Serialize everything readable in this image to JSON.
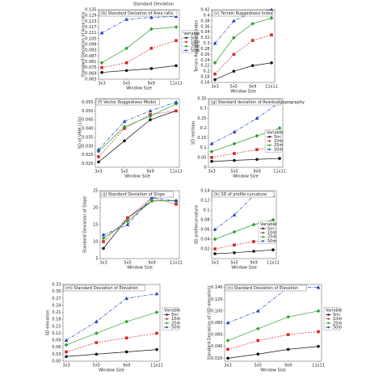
{
  "figure_title": "Standard Deviation",
  "chart_data": [
    {
      "type": "line",
      "title": "(b) Standard Deviation of Area ratio",
      "ylabel": "Standard Deviation of Area ratio",
      "xlabel": "Window Size",
      "legend_title": "Variable",
      "categories": [
        "3x3",
        "5x5",
        "9x9",
        "11x11"
      ],
      "ylim": [
        0.063,
        0.135
      ],
      "yticks": [
        0.063,
        0.069,
        0.075,
        0.081,
        0.087,
        0.093,
        0.099,
        0.105,
        0.111,
        0.117,
        0.123,
        0.129,
        0.135
      ],
      "series": [
        {
          "name": "5m",
          "color": "#111111",
          "values": [
            0.07,
            0.072,
            0.074,
            0.077
          ]
        },
        {
          "name": "10m",
          "color": "#d62728",
          "values": [
            0.075,
            0.08,
            0.095,
            0.103
          ]
        },
        {
          "name": "25m",
          "color": "#2ca02c",
          "values": [
            0.08,
            0.095,
            0.115,
            0.117
          ]
        },
        {
          "name": "50m",
          "color": "#1f3fbf",
          "values": [
            0.111,
            0.125,
            0.127,
            0.128
          ]
        }
      ]
    },
    {
      "type": "line",
      "title": "(c) Terrain Ruggedness Index",
      "ylabel": "Terrain Ruggedness Index",
      "xlabel": "Window Size",
      "categories": [
        "3x3",
        "5x5",
        "9x9",
        "11x11"
      ],
      "ylim": [
        0.16,
        0.42
      ],
      "yticks": [
        0.16,
        0.18,
        0.2,
        0.22,
        0.24,
        0.26,
        0.28,
        0.3,
        0.32,
        0.34,
        0.36,
        0.38,
        0.4,
        0.42
      ],
      "series": [
        {
          "name": "5m",
          "color": "#111111",
          "values": [
            0.17,
            0.2,
            0.22,
            0.23
          ]
        },
        {
          "name": "10m",
          "color": "#d62728",
          "values": [
            0.19,
            0.26,
            0.31,
            0.33
          ]
        },
        {
          "name": "25m",
          "color": "#2ca02c",
          "values": [
            0.23,
            0.32,
            0.37,
            0.39
          ]
        },
        {
          "name": "50m",
          "color": "#1f3fbf",
          "values": [
            0.3,
            0.38,
            0.41,
            0.42
          ]
        }
      ]
    },
    {
      "type": "line",
      "title": "(f) Vector Ruggedness Model",
      "ylabel": "SD of VRM (1/k)",
      "xlabel": "Window Size",
      "categories": [
        "3x3",
        "5x5",
        "9x9",
        "11x11"
      ],
      "ylim": [
        0.018,
        0.057
      ],
      "yticks": [
        {
          "value": 0.02,
          "label": "0.020"
        },
        0.025,
        {
          "value": 0.03,
          "label": "0.030"
        },
        0.035,
        {
          "value": 0.04,
          "label": "0.040"
        },
        0.045,
        {
          "value": 0.05,
          "label": "0.050"
        },
        0.055
      ],
      "series": [
        {
          "name": "5m",
          "color": "#111111",
          "values": [
            0.021,
            0.033,
            0.045,
            0.05
          ]
        },
        {
          "name": "10m",
          "color": "#d62728",
          "values": [
            0.024,
            0.04,
            0.048,
            0.05
          ]
        },
        {
          "name": "25m",
          "color": "#2ca02c",
          "values": [
            0.027,
            0.041,
            0.047,
            0.054
          ]
        },
        {
          "name": "50m",
          "color": "#1f3fbf",
          "values": [
            0.028,
            0.044,
            0.05,
            0.055
          ]
        }
      ]
    },
    {
      "type": "line",
      "title": "(g) Standard deviation of Residual topography",
      "ylabel": "SD resitopo",
      "xlabel": "Window Size",
      "legend_title": "Variable",
      "categories": [
        "3x3",
        "5x5",
        "9x9",
        "11x11"
      ],
      "ylim": [
        0,
        0.35
      ],
      "yticks": [
        0,
        0.05,
        0.1,
        0.15,
        0.2,
        0.25,
        0.3,
        0.35
      ],
      "series": [
        {
          "name": "5m",
          "color": "#111111",
          "values": [
            0.03,
            0.035,
            0.04,
            0.045
          ]
        },
        {
          "name": "10m",
          "color": "#d62728",
          "values": [
            0.05,
            0.07,
            0.09,
            0.11
          ]
        },
        {
          "name": "25m",
          "color": "#2ca02c",
          "values": [
            0.08,
            0.12,
            0.16,
            0.2
          ]
        },
        {
          "name": "50m",
          "color": "#1f3fbf",
          "values": [
            0.12,
            0.18,
            0.25,
            0.33
          ]
        }
      ]
    },
    {
      "type": "line",
      "title": "(j) Standard Deviation of Slope",
      "ylabel": "Standard Deviation of Slope",
      "xlabel": "Window Size",
      "categories": [
        "3x3",
        "5x5",
        "9x9",
        "11x11"
      ],
      "ylim": [
        5,
        25
      ],
      "yticks": [
        5,
        10,
        15,
        20,
        25
      ],
      "series": [
        {
          "name": "5m",
          "color": "#111111",
          "values": [
            8,
            17,
            22,
            22
          ]
        },
        {
          "name": "10m",
          "color": "#d62728",
          "values": [
            10,
            17,
            23,
            21
          ]
        },
        {
          "name": "25m",
          "color": "#2ca02c",
          "values": [
            11,
            16,
            22,
            22
          ]
        },
        {
          "name": "50m",
          "color": "#1f3fbf",
          "values": [
            12,
            15,
            23,
            22
          ]
        }
      ]
    },
    {
      "type": "line",
      "title": "(k) SD of profile curvature",
      "ylabel": "SD profilecurvature",
      "xlabel": "Window Size",
      "legend_title": "Variable",
      "categories": [
        "3x3",
        "5x5",
        "9x9",
        "11x11"
      ],
      "ylim": [
        0,
        0.14
      ],
      "yticks": [
        0.02,
        0.04,
        0.06,
        0.08,
        0.1,
        0.12,
        0.14
      ],
      "series": [
        {
          "name": "5m",
          "color": "#111111",
          "values": [
            0.01,
            0.012,
            0.015,
            0.018
          ]
        },
        {
          "name": "10m",
          "color": "#d62728",
          "values": [
            0.02,
            0.028,
            0.035,
            0.04
          ]
        },
        {
          "name": "25m",
          "color": "#2ca02c",
          "values": [
            0.04,
            0.055,
            0.07,
            0.08
          ]
        },
        {
          "name": "50m",
          "color": "#1f3fbf",
          "values": [
            0.06,
            0.09,
            0.13,
            0.13
          ]
        }
      ]
    },
    {
      "type": "line",
      "title": "(m) Standard Deviation of Elevation",
      "ylabel": "SD elevation",
      "xlabel": "Window Size",
      "legend_title": "Variable",
      "categories": [
        "3x3",
        "5x5",
        "9x9",
        "11x11"
      ],
      "ylim": [
        0,
        0.33
      ],
      "yticks": [
        {
          "value": 0,
          "label": "0.00"
        },
        0.03,
        0.06,
        0.09,
        0.12,
        0.15,
        0.18,
        0.21,
        0.24,
        0.27,
        {
          "value": 0.3,
          "label": "0.30"
        },
        0.33
      ],
      "series": [
        {
          "name": "5m",
          "color": "#111111",
          "values": [
            0.02,
            0.03,
            0.04,
            0.05
          ]
        },
        {
          "name": "10m",
          "color": "#d62728",
          "values": [
            0.04,
            0.08,
            0.1,
            0.12
          ]
        },
        {
          "name": "25m",
          "color": "#2ca02c",
          "values": [
            0.07,
            0.12,
            0.17,
            0.21
          ]
        },
        {
          "name": "50m",
          "color": "#1f3fbf",
          "values": [
            0.09,
            0.17,
            0.27,
            0.29
          ]
        }
      ]
    },
    {
      "type": "line",
      "title": "(n) Standard Deviation of Elevation",
      "ylabel": "Standard Deviation of (SD elevation)",
      "xlabel": "Window Size",
      "legend_title": "Variable",
      "categories": [
        "3x3",
        "5x5",
        "9x9",
        "11x11"
      ],
      "ylim": [
        0.015,
        0.145
      ],
      "yticks": [
        {
          "value": 0.02,
          "label": "0.020"
        },
        {
          "value": 0.04,
          "label": "0.040"
        },
        {
          "value": 0.06,
          "label": "0.060"
        },
        {
          "value": 0.08,
          "label": "0.080"
        },
        {
          "value": 0.1,
          "label": "0.100"
        },
        {
          "value": 0.12,
          "label": "0.120"
        },
        {
          "value": 0.14,
          "label": "0.140"
        }
      ],
      "series": [
        {
          "name": "5m",
          "color": "#111111",
          "values": [
            0.02,
            0.027,
            0.035,
            0.04
          ]
        },
        {
          "name": "10m",
          "color": "#d62728",
          "values": [
            0.035,
            0.05,
            0.06,
            0.065
          ]
        },
        {
          "name": "25m",
          "color": "#2ca02c",
          "values": [
            0.05,
            0.07,
            0.09,
            0.1
          ]
        },
        {
          "name": "50m",
          "color": "#1f3fbf",
          "values": [
            0.08,
            0.1,
            0.14,
            0.14
          ]
        }
      ]
    }
  ]
}
